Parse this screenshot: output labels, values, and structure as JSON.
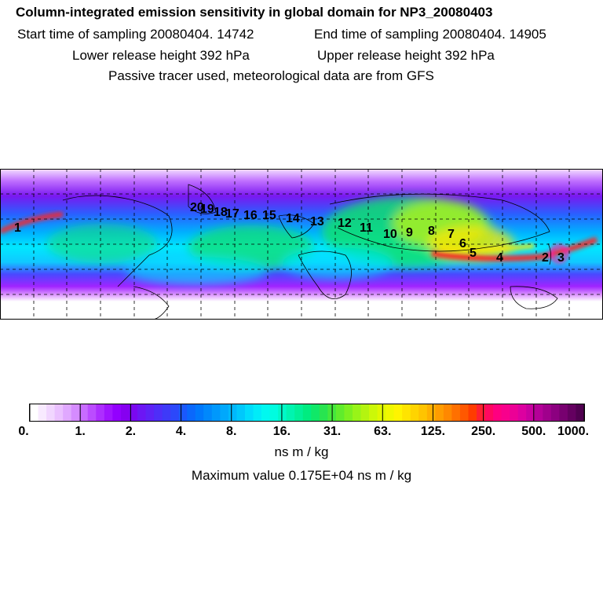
{
  "header": {
    "title": "Column-integrated emission sensitivity in global domain for NP3_20080403",
    "start_label": "Start time of sampling 20080404. 14742",
    "end_label": "End time of sampling 20080404. 14905",
    "lower_label": "Lower release height  392 hPa",
    "upper_label": "Upper release height  392 hPa",
    "tracer_label": "Passive tracer used, meteorological data are from GFS"
  },
  "map": {
    "track_points": [
      "1",
      "2",
      "3",
      "4",
      "5",
      "6",
      "7",
      "8",
      "9",
      "10",
      "11",
      "12",
      "13",
      "14",
      "15",
      "16",
      "17",
      "18",
      "19",
      "20"
    ],
    "colors": {
      "low": "#f3d9ff",
      "violet": "#9b00f0",
      "blue": "#1e5cff",
      "cyan": "#00e8ff",
      "green": "#10e070",
      "yellow": "#ffe600",
      "red": "#ff2020",
      "magenta": "#ff1aa0"
    }
  },
  "colorbar": {
    "tick_labels": [
      "0.",
      "1.",
      "2.",
      "4.",
      "8.",
      "16.",
      "31.",
      "63.",
      "125.",
      "250.",
      "500.",
      "1000."
    ],
    "colors": [
      "#ffffff",
      "#f8eaff",
      "#f1d6ff",
      "#eac0ff",
      "#e0a8ff",
      "#d58cff",
      "#c86cff",
      "#bb4cff",
      "#ad2eff",
      "#a014ff",
      "#9300ff",
      "#8600f0",
      "#7a08f0",
      "#6c16f4",
      "#5e22f6",
      "#4e2ef8",
      "#3e3af8",
      "#2c48fa",
      "#1a58fc",
      "#0a68fc",
      "#0078fc",
      "#0088fc",
      "#0098fc",
      "#00a8fc",
      "#00b8fc",
      "#00c8fc",
      "#00dcfc",
      "#00ecf8",
      "#00f8f0",
      "#00fce0",
      "#00f8c8",
      "#00f4b0",
      "#00f098",
      "#00ec80",
      "#10e868",
      "#28e450",
      "#44e83c",
      "#60ec2c",
      "#7cf020",
      "#98f418",
      "#b4f410",
      "#ccf808",
      "#e0f800",
      "#f0f800",
      "#fff400",
      "#ffe400",
      "#ffd400",
      "#ffc400",
      "#ffb000",
      "#ff9c00",
      "#ff8800",
      "#ff7000",
      "#ff5800",
      "#ff3c00",
      "#ff2030",
      "#ff0860",
      "#ff0080",
      "#f8008c",
      "#ec0096",
      "#dc00a0",
      "#c800a0",
      "#b40098",
      "#a0008c",
      "#8c0080",
      "#780070",
      "#640060",
      "#500050"
    ],
    "unit": "ns m / kg",
    "max_label": "Maximum value  0.175E+04 ns m / kg"
  }
}
